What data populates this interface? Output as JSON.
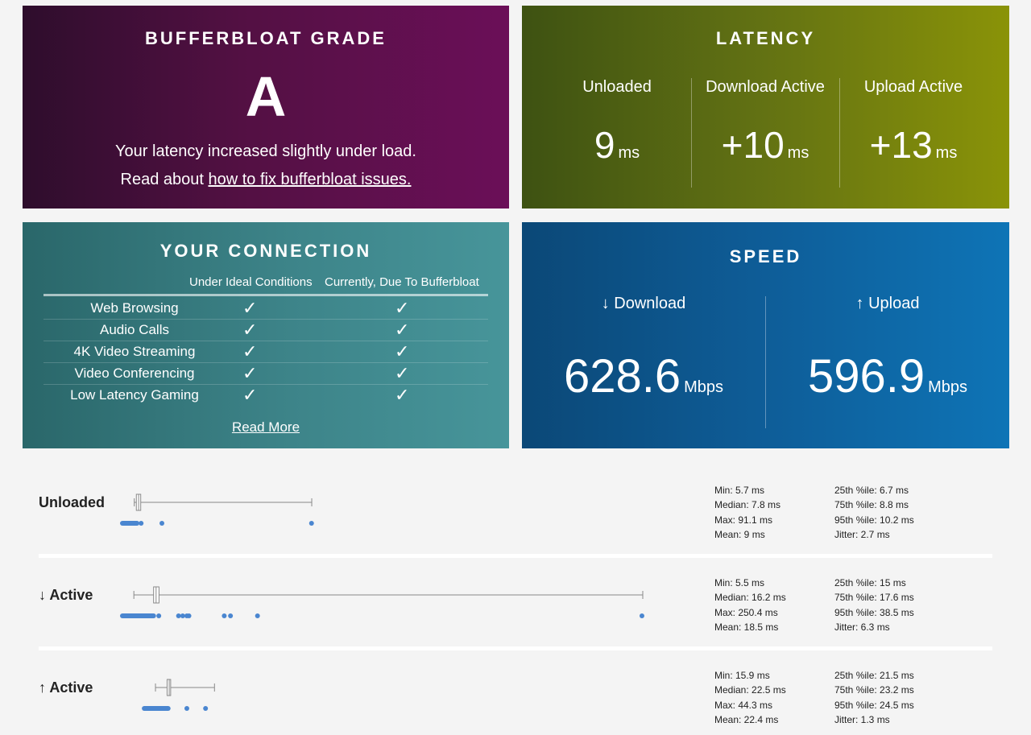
{
  "grade": {
    "title": "BUFFERBLOAT GRADE",
    "letter": "A",
    "line1": "Your latency increased slightly under load.",
    "line2_prefix": "Read about ",
    "line2_link": "how to fix bufferbloat issues."
  },
  "latency": {
    "title": "LATENCY",
    "unit": "ms",
    "columns": [
      {
        "label": "Unloaded",
        "value": "9"
      },
      {
        "label": "Download Active",
        "value": "+10"
      },
      {
        "label": "Upload Active",
        "value": "+13"
      }
    ]
  },
  "connection": {
    "title": "YOUR CONNECTION",
    "col_ideal": "Under Ideal Conditions",
    "col_current": "Currently, Due To Bufferbloat",
    "check_glyph": "✓",
    "rows": [
      {
        "name": "Web Browsing",
        "ideal": true,
        "current": true
      },
      {
        "name": "Audio Calls",
        "ideal": true,
        "current": true
      },
      {
        "name": "4K Video Streaming",
        "ideal": true,
        "current": true
      },
      {
        "name": "Video Conferencing",
        "ideal": true,
        "current": true
      },
      {
        "name": "Low Latency Gaming",
        "ideal": true,
        "current": true
      }
    ],
    "read_more": "Read More"
  },
  "speed": {
    "title": "SPEED",
    "unit": "Mbps",
    "download": {
      "label": "↓ Download",
      "value": "628.6"
    },
    "upload": {
      "label": "↑ Upload",
      "value": "596.9"
    }
  },
  "stats": {
    "axis_ms": [
      0,
      250.4
    ],
    "point_color": "#4a86d0",
    "rows": [
      {
        "label": "Unloaded",
        "min": 5.7,
        "q1": 6.7,
        "median": 7.8,
        "q3": 8.8,
        "max": 91.1,
        "dense_range": [
          0,
          7.0
        ],
        "outliers": [
          9.0,
          19.0,
          91.0
        ],
        "left": [
          "Min: 5.7 ms",
          "Median: 7.8 ms",
          "Max: 91.1 ms",
          "Mean: 9 ms"
        ],
        "right": [
          "25th %ile: 6.7 ms",
          "75th %ile: 8.8 ms",
          "95th %ile: 10.2 ms",
          "Jitter: 2.7 ms"
        ]
      },
      {
        "label": "↓ Active",
        "min": 5.5,
        "q1": 15,
        "median": 16.2,
        "q3": 17.6,
        "max": 250.4,
        "dense_range": [
          0,
          15.0
        ],
        "outliers": [
          17.5,
          27.0,
          29.0,
          31.0,
          32.0,
          49.0,
          52.0,
          65.0,
          250.0
        ],
        "left": [
          "Min: 5.5 ms",
          "Median: 16.2 ms",
          "Max: 250.4 ms",
          "Mean: 18.5 ms"
        ],
        "right": [
          "25th %ile: 15 ms",
          "75th %ile: 17.6 ms",
          "95th %ile: 38.5 ms",
          "Jitter: 6.3 ms"
        ]
      },
      {
        "label": "↑ Active",
        "min": 15.9,
        "q1": 21.5,
        "median": 22.5,
        "q3": 23.2,
        "max": 44.3,
        "dense_range": [
          10.5,
          22.0
        ],
        "outliers": [
          31.0,
          40.0
        ],
        "left": [
          "Min: 15.9 ms",
          "Median: 22.5 ms",
          "Max: 44.3 ms",
          "Mean: 22.4 ms"
        ],
        "right": [
          "25th %ile: 21.5 ms",
          "75th %ile: 23.2 ms",
          "95th %ile: 24.5 ms",
          "Jitter: 1.3 ms"
        ]
      }
    ]
  }
}
